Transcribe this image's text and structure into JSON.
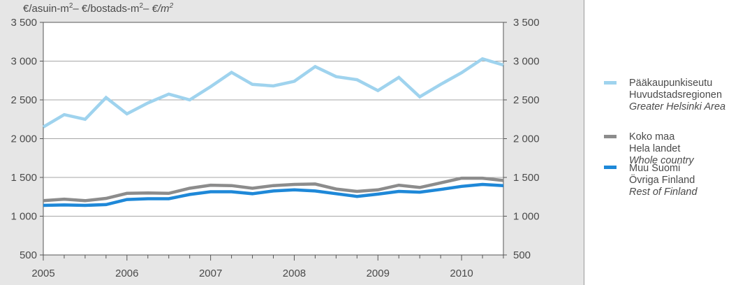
{
  "chart_data": {
    "type": "line",
    "ylabel_html": "€/asuin-m²– €/bostads-m²– €/m²",
    "ylabel_parts": [
      "€/asuin-m",
      "2",
      "– €/bostads-m",
      "2",
      "– ",
      "€/m",
      "2"
    ],
    "ylim": [
      500,
      3500
    ],
    "yticks": [
      500,
      1000,
      1500,
      2000,
      2500,
      3000,
      3500
    ],
    "ytick_labels": [
      "500",
      "1 000",
      "1 500",
      "2 000",
      "2 500",
      "3 000",
      "3 500"
    ],
    "xticks": [
      "2005",
      "2006",
      "2007",
      "2008",
      "2009",
      "2010"
    ],
    "x_quarters": [
      "2005Q1",
      "2005Q2",
      "2005Q3",
      "2005Q4",
      "2006Q1",
      "2006Q2",
      "2006Q3",
      "2006Q4",
      "2007Q1",
      "2007Q2",
      "2007Q3",
      "2007Q4",
      "2008Q1",
      "2008Q2",
      "2008Q3",
      "2008Q4",
      "2009Q1",
      "2009Q2",
      "2009Q3",
      "2009Q4",
      "2010Q1",
      "2010Q2",
      "2010Q3",
      "2010Q4"
    ],
    "grid": "horizontal",
    "legend_position": "right",
    "series": [
      {
        "name_lines": [
          "Pääkaupunkiseutu",
          "Huvudstadsregionen",
          "Greater Helsinki Area"
        ],
        "color": "#9fd3ee",
        "values": [
          2150,
          2310,
          2250,
          2530,
          2320,
          2460,
          2575,
          2500,
          2670,
          2855,
          2700,
          2680,
          2740,
          2930,
          2800,
          2760,
          2620,
          2790,
          2540,
          2700,
          2850,
          3030,
          2950
        ]
      },
      {
        "name_lines": [
          "Koko maa",
          "Hela landet",
          "Whole country"
        ],
        "color": "#8c8c8c",
        "values": [
          1200,
          1220,
          1200,
          1230,
          1295,
          1300,
          1295,
          1360,
          1400,
          1395,
          1360,
          1395,
          1410,
          1415,
          1350,
          1320,
          1340,
          1400,
          1370,
          1430,
          1490,
          1490,
          1460
        ]
      },
      {
        "name_lines": [
          "Muu Suomi",
          "Övriga Finland",
          "Rest of Finland"
        ],
        "color": "#1e88d8",
        "values": [
          1140,
          1145,
          1140,
          1150,
          1215,
          1225,
          1225,
          1280,
          1315,
          1315,
          1290,
          1325,
          1340,
          1325,
          1290,
          1255,
          1285,
          1320,
          1310,
          1345,
          1385,
          1410,
          1395
        ]
      }
    ]
  }
}
